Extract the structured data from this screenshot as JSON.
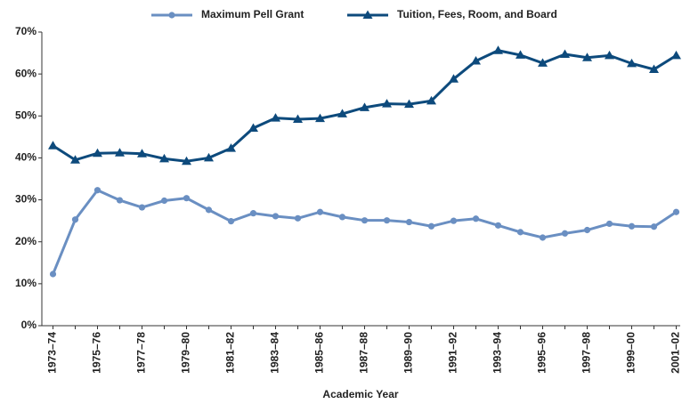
{
  "chart_data": {
    "type": "line",
    "x_label": "Academic Year",
    "categories": [
      "1973–74",
      null,
      "1975–76",
      null,
      "1977–78",
      null,
      "1979–80",
      null,
      "1981–82",
      null,
      "1983–84",
      null,
      "1985–86",
      null,
      "1987–88",
      null,
      "1989–90",
      null,
      "1991–92",
      null,
      "1993–94",
      null,
      "1995–96",
      null,
      "1997–98",
      null,
      "1999–00",
      null,
      "2001–02"
    ],
    "series": [
      {
        "name": "Maximum Pell Grant",
        "color": "#6a8fc2",
        "marker": "circle",
        "values": [
          12.3,
          25.3,
          32.3,
          29.9,
          28.2,
          29.8,
          30.4,
          27.6,
          24.9,
          26.8,
          26.1,
          25.6,
          27.1,
          25.9,
          25.1,
          25.1,
          24.7,
          23.7,
          25.0,
          25.5,
          23.9,
          22.3,
          21.0,
          22.0,
          22.8,
          24.3,
          23.7,
          23.6,
          27.1
        ]
      },
      {
        "name": "Tuition, Fees, Room, and Board",
        "color": "#0d4a7c",
        "marker": "triangle",
        "values": [
          42.9,
          39.5,
          41.1,
          41.2,
          41.0,
          39.8,
          39.2,
          40.0,
          42.3,
          47.1,
          49.5,
          49.2,
          49.4,
          50.5,
          52.0,
          52.9,
          52.8,
          53.6,
          58.8,
          63.1,
          65.6,
          64.5,
          62.6,
          64.7,
          63.9,
          64.4,
          62.5,
          61.1,
          64.4
        ]
      }
    ],
    "ylim": [
      0,
      70
    ],
    "yticks": [
      {
        "value": 0,
        "label": "0%"
      },
      {
        "value": 10,
        "label": "10%"
      },
      {
        "value": 20,
        "label": "20%"
      },
      {
        "value": 30,
        "label": "30%"
      },
      {
        "value": 40,
        "label": "40%"
      },
      {
        "value": 50,
        "label": "50%"
      },
      {
        "value": 60,
        "label": "60%"
      },
      {
        "value": 70,
        "label": "70%"
      }
    ],
    "grid": false,
    "legend": "top"
  }
}
